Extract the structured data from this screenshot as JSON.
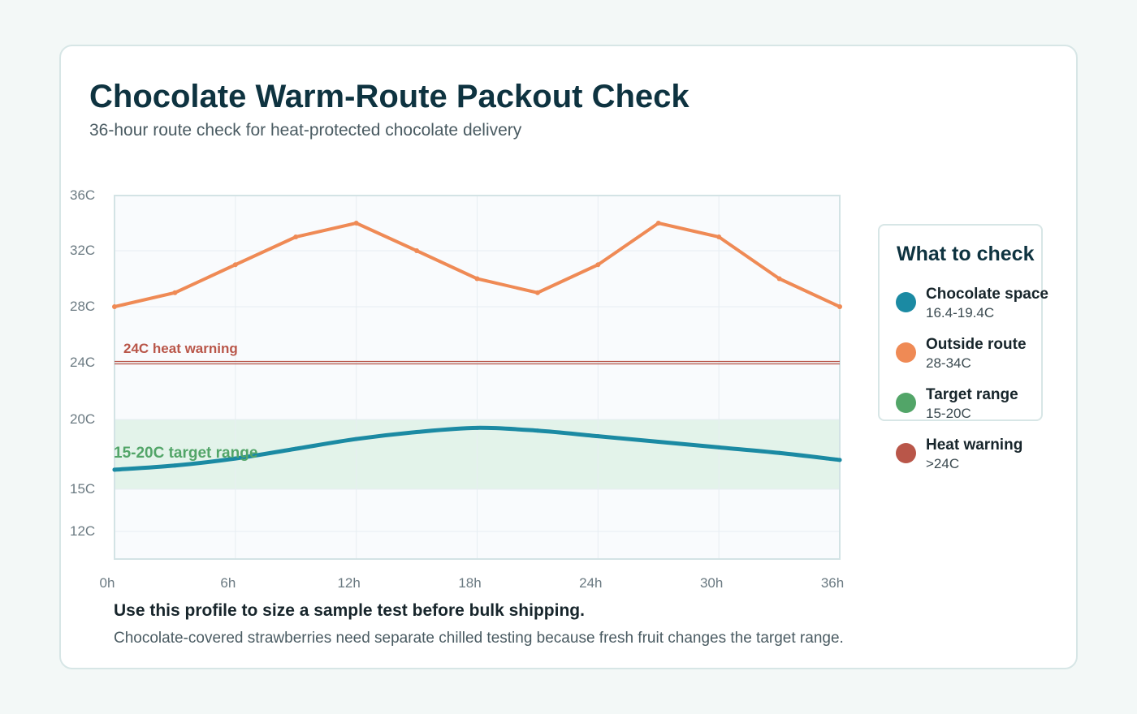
{
  "page": {
    "title": "Chocolate Warm-Route Packout Check",
    "subtitle": "36-hour route check for heat-protected chocolate delivery",
    "note_bold": "Use this profile to size a sample test before bulk shipping.",
    "note": "Chocolate-covered strawberries need separate chilled testing because fresh fruit changes the target range."
  },
  "legend": {
    "title": "What to check",
    "items": [
      {
        "name": "Chocolate space",
        "range": "16.4-19.4C",
        "color": "#1b8aa3"
      },
      {
        "name": "Outside route",
        "range": "28-34C",
        "color": "#ef8a55"
      },
      {
        "name": "Target range",
        "range": "15-20C",
        "color": "#52a568"
      },
      {
        "name": "Heat warning",
        "range": ">24C",
        "color": "#b95649"
      }
    ]
  },
  "chart_data": {
    "type": "line",
    "x": [
      0,
      3,
      6,
      9,
      12,
      15,
      18,
      21,
      24,
      27,
      30,
      33,
      36
    ],
    "x_ticks": [
      0,
      6,
      12,
      18,
      24,
      30,
      36
    ],
    "x_tick_labels": [
      "0h",
      "6h",
      "12h",
      "18h",
      "24h",
      "30h",
      "36h"
    ],
    "y_ticks": [
      12,
      15,
      20,
      24,
      28,
      32,
      36
    ],
    "y_tick_labels": [
      "12C",
      "15C",
      "20C",
      "24C",
      "28C",
      "32C",
      "36C"
    ],
    "ylim": [
      10,
      36
    ],
    "xlim": [
      0,
      36
    ],
    "series": [
      {
        "name": "Outside route",
        "color": "#ef8a55",
        "values": [
          28,
          29,
          31,
          33,
          34,
          32,
          30,
          29,
          31,
          34,
          33,
          30,
          28
        ]
      },
      {
        "name": "Chocolate space",
        "color": "#1b8aa3",
        "values": [
          16.4,
          16.7,
          17.2,
          17.9,
          18.6,
          19.1,
          19.4,
          19.2,
          18.8,
          18.4,
          18.0,
          17.6,
          17.1
        ]
      }
    ],
    "target_band": {
      "min": 15,
      "max": 20,
      "label": "15-20C target range",
      "color": "#52a568"
    },
    "heat_warning": {
      "value": 24,
      "label": "24C heat warning",
      "color": "#b95649"
    },
    "grid": true
  }
}
